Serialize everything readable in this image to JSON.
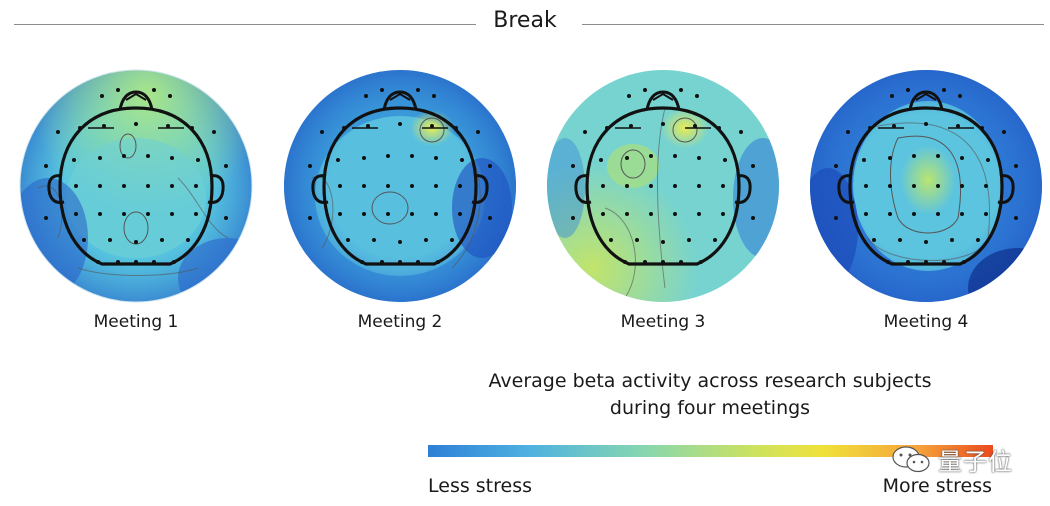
{
  "header": {
    "title": "Break"
  },
  "meetings": [
    {
      "label": "Meeting 1",
      "stress_level": "low"
    },
    {
      "label": "Meeting 2",
      "stress_level": "low-moderate"
    },
    {
      "label": "Meeting 3",
      "stress_level": "moderate"
    },
    {
      "label": "Meeting 4",
      "stress_level": "low-moderate"
    }
  ],
  "caption": {
    "line1": "Average beta activity across research subjects",
    "line2": "during four meetings"
  },
  "scale": {
    "low_label": "Less stress",
    "high_label": "More stress",
    "colors": [
      "#2f7fd6",
      "#86d6b0",
      "#f0e13a",
      "#ea4a1e"
    ]
  },
  "watermark": {
    "text": "量子位"
  }
}
